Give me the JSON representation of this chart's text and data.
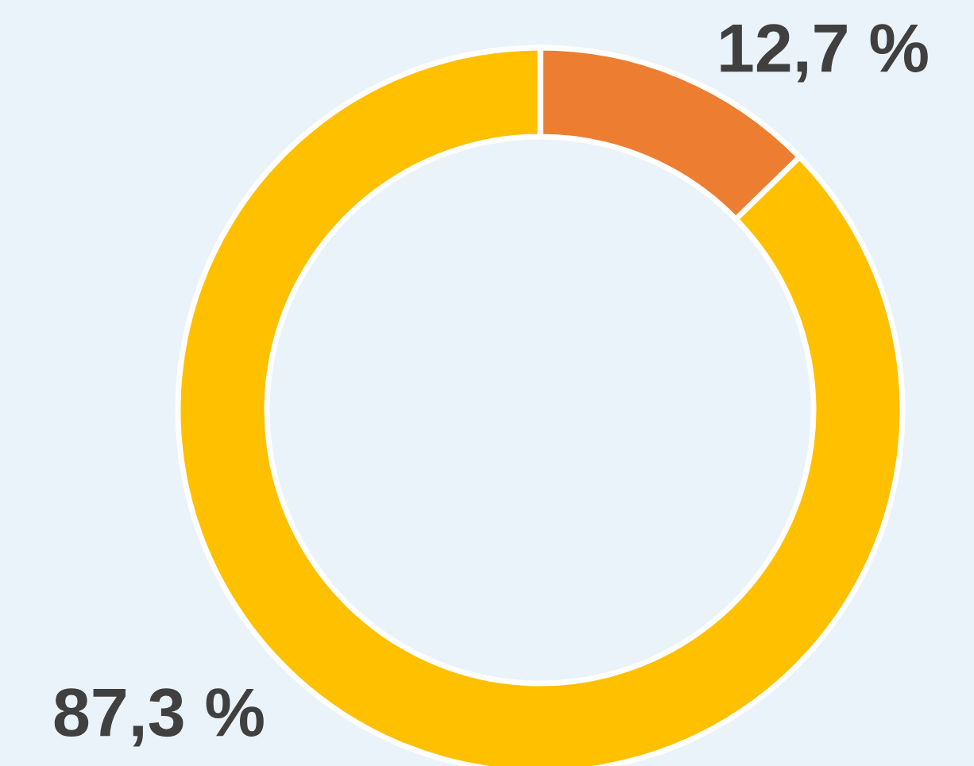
{
  "chart_data": {
    "type": "donut",
    "categories": [
      null,
      null
    ],
    "values": [
      12.7,
      87.3
    ],
    "colors": [
      "#ed7d31",
      "#ffc000"
    ],
    "value_labels": [
      "12,7 %",
      "87,3 %"
    ]
  }
}
